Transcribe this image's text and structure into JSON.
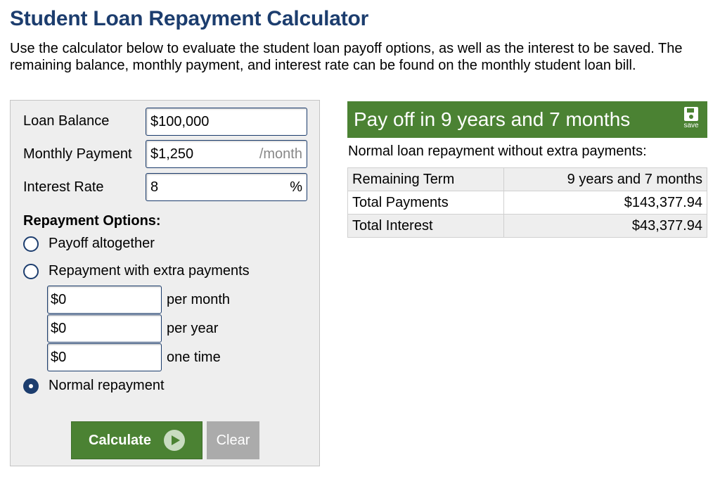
{
  "title": "Student Loan Repayment Calculator",
  "intro": "Use the calculator below to evaluate the student loan payoff options, as well as the interest to be saved. The remaining balance, monthly payment, and interest rate can be found on the monthly student loan bill.",
  "form": {
    "loan_balance": {
      "label": "Loan Balance",
      "value": "$100,000"
    },
    "monthly_payment": {
      "label": "Monthly Payment",
      "value": "$1,250",
      "unit": "/month"
    },
    "interest_rate": {
      "label": "Interest Rate",
      "value": "8",
      "unit": "%"
    },
    "options_title": "Repayment Options:",
    "options": [
      {
        "label": "Payoff altogether",
        "checked": false
      },
      {
        "label": "Repayment with extra payments",
        "checked": false
      },
      {
        "label": "Normal repayment",
        "checked": true
      }
    ],
    "extra": [
      {
        "value": "$0",
        "label": "per month"
      },
      {
        "value": "$0",
        "label": "per year"
      },
      {
        "value": "$0",
        "label": "one time"
      }
    ],
    "calculate_label": "Calculate",
    "clear_label": "Clear"
  },
  "result": {
    "headline": "Pay off in 9 years and 7 months",
    "save_label": "save",
    "subtitle": "Normal loan repayment without extra payments:",
    "rows": [
      {
        "label": "Remaining Term",
        "value": "9 years and 7 months"
      },
      {
        "label": "Total Payments",
        "value": "$143,377.94"
      },
      {
        "label": "Total Interest",
        "value": "$43,377.94"
      }
    ]
  },
  "colors": {
    "title": "#1c3d6e",
    "accent_green": "#4b8233",
    "clear_gray": "#ababab",
    "panel_bg": "#eeeeee"
  }
}
